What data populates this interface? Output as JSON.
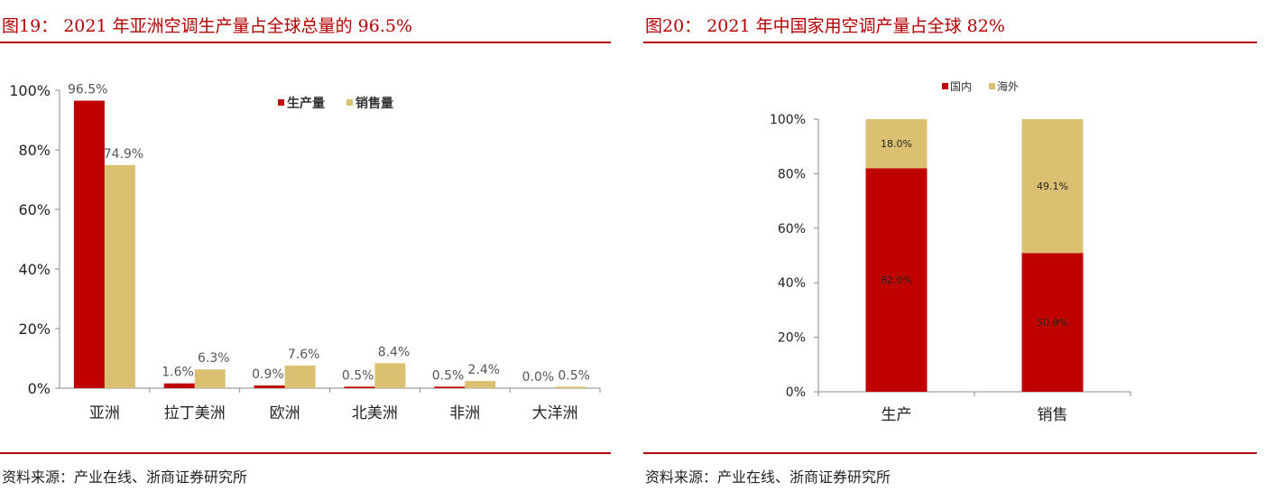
{
  "figures": [
    {
      "title": "图19：  2021 年亚洲空调生产量占全球总量的 96.5%",
      "source": "资料来源：产业在线、浙商证券研究所"
    },
    {
      "title": "图20：  2021 年中国家用空调产量占全球 82%",
      "source": "资料来源：产业在线、浙商证券研究所"
    }
  ],
  "colors": {
    "title": "#b30000",
    "red": "#c00000",
    "gold": "#dcc072"
  },
  "chart_data": [
    {
      "type": "bar",
      "categories": [
        "亚洲",
        "拉丁美洲",
        "欧洲",
        "北美洲",
        "非洲",
        "大洋洲"
      ],
      "series": [
        {
          "name": "生产量",
          "values": [
            96.5,
            1.6,
            0.9,
            0.5,
            0.5,
            0.0
          ],
          "labels": [
            "96.5%",
            "1.6%",
            "0.9%",
            "0.5%",
            "0.5%",
            "0.0%"
          ],
          "color": "#c00000"
        },
        {
          "name": "销售量",
          "values": [
            74.9,
            6.3,
            7.6,
            8.4,
            2.4,
            0.5
          ],
          "labels": [
            "74.9%",
            "6.3%",
            "7.6%",
            "8.4%",
            "2.4%",
            "0.5%"
          ],
          "color": "#dcc072"
        }
      ],
      "yticks": [
        "0%",
        "20%",
        "40%",
        "60%",
        "80%",
        "100%"
      ],
      "ylim": [
        0,
        100
      ],
      "grid": false,
      "legend": "top-right"
    },
    {
      "type": "bar",
      "stacked": true,
      "categories": [
        "生产",
        "销售"
      ],
      "series": [
        {
          "name": "国内",
          "values": [
            82.0,
            50.9
          ],
          "labels": [
            "82.0%",
            "50.9%"
          ],
          "color": "#c00000"
        },
        {
          "name": "海外",
          "values": [
            18.0,
            49.1
          ],
          "labels": [
            "18.0%",
            "49.1%"
          ],
          "color": "#dcc072"
        }
      ],
      "yticks": [
        "0%",
        "20%",
        "40%",
        "60%",
        "80%",
        "100%"
      ],
      "ylim": [
        0,
        100
      ],
      "grid": false,
      "legend": "top"
    }
  ]
}
